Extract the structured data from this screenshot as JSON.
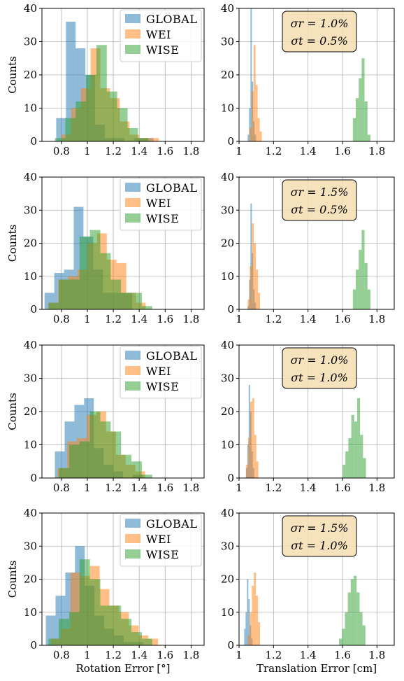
{
  "chart_data": {
    "type": "histogram-grid",
    "series": [
      {
        "name": "GLOBAL",
        "color": "#1f77b4"
      },
      {
        "name": "WEI",
        "color": "#ff7f0e"
      },
      {
        "name": "WISE",
        "color": "#2ca02c"
      }
    ],
    "rotation_axis": {
      "xlabel": "Rotation Error [°]",
      "xlim": [
        0.65,
        1.9
      ],
      "xticks": [
        "0.8",
        "1",
        "1.2",
        "1.4",
        "1.6",
        "1.8"
      ],
      "xtick_values": [
        0.8,
        1.0,
        1.2,
        1.4,
        1.6,
        1.8
      ]
    },
    "translation_axis": {
      "xlabel": "Translation Error [cm]",
      "xlim": [
        1.0,
        1.9
      ],
      "xticks": [
        "1",
        "1.2",
        "1.4",
        "1.6",
        "1.8"
      ],
      "xtick_values": [
        1.0,
        1.2,
        1.4,
        1.6,
        1.8
      ]
    },
    "ylabel": "Counts",
    "ylim": [
      0,
      40
    ],
    "yticks": [
      "0",
      "10",
      "20",
      "30",
      "40"
    ],
    "ytick_values": [
      0,
      10,
      20,
      30,
      40
    ],
    "rows": [
      {
        "sigma_r": "σr = 1.0%",
        "sigma_t": "σt = 0.5%",
        "rotation": {
          "GLOBAL": {
            "start": 0.76,
            "width": 0.075,
            "counts": [
              7,
              36,
              28,
              20,
              5,
              1,
              1,
              0,
              1,
              1,
              0
            ]
          },
          "WEI": {
            "start": 0.8,
            "width": 0.075,
            "counts": [
              2,
              10,
              16,
              28,
              16,
              13,
              6,
              2,
              1,
              1
            ]
          },
          "WISE": {
            "start": 0.75,
            "width": 0.08,
            "counts": [
              1,
              7,
              12,
              20,
              29,
              15,
              10,
              4,
              1
            ]
          }
        },
        "translation": {
          "GLOBAL": {
            "start": 1.05,
            "width": 0.008,
            "counts": [
              2,
              10,
              40,
              18,
              6,
              2
            ]
          },
          "WEI": {
            "start": 1.06,
            "width": 0.012,
            "counts": [
              4,
              15,
              29,
              17,
              7,
              3
            ]
          },
          "WISE": {
            "start": 1.66,
            "width": 0.017,
            "counts": [
              7,
              13,
              19,
              25,
              12,
              2
            ]
          }
        }
      },
      {
        "sigma_r": "σr = 1.5%",
        "sigma_t": "σt = 0.5%",
        "rotation": {
          "GLOBAL": {
            "start": 0.67,
            "width": 0.075,
            "counts": [
              5,
              11,
              12,
              31,
              22,
              12,
              5,
              5,
              5,
              0,
              0
            ]
          },
          "WEI": {
            "start": 0.7,
            "width": 0.075,
            "counts": [
              2,
              9,
              10,
              12,
              20,
              23,
              15,
              14,
              5,
              2
            ]
          },
          "WISE": {
            "start": 0.7,
            "width": 0.08,
            "counts": [
              2,
              9,
              9,
              22,
              24,
              17,
              9,
              5,
              5,
              1
            ]
          }
        },
        "translation": {
          "GLOBAL": {
            "start": 1.05,
            "width": 0.008,
            "counts": [
              1,
              9,
              32,
              17,
              6,
              2
            ]
          },
          "WEI": {
            "start": 1.05,
            "width": 0.012,
            "counts": [
              3,
              13,
              26,
              20,
              12,
              5
            ]
          },
          "WISE": {
            "start": 1.66,
            "width": 0.017,
            "counts": [
              6,
              12,
              18,
              24,
              14,
              6
            ]
          }
        }
      },
      {
        "sigma_r": "σr = 1.0%",
        "sigma_t": "σt = 1.0%",
        "rotation": {
          "GLOBAL": {
            "start": 0.75,
            "width": 0.075,
            "counts": [
              8,
              17,
              22,
              24,
              9,
              4,
              2,
              0,
              1
            ]
          },
          "WEI": {
            "start": 0.77,
            "width": 0.075,
            "counts": [
              3,
              11,
              12,
              19,
              20,
              14,
              7,
              4,
              2
            ]
          },
          "WISE": {
            "start": 0.78,
            "width": 0.08,
            "counts": [
              3,
              10,
              11,
              20,
              17,
              14,
              7,
              5,
              1
            ]
          }
        },
        "translation": {
          "GLOBAL": {
            "start": 1.04,
            "width": 0.008,
            "counts": [
              3,
              10,
              28,
              20,
              8,
              3
            ]
          },
          "WEI": {
            "start": 1.04,
            "width": 0.012,
            "counts": [
              4,
              12,
              23,
              24,
              13,
              5
            ]
          },
          "WISE": {
            "start": 1.6,
            "width": 0.017,
            "counts": [
              4,
              8,
              12,
              19,
              17,
              24,
              13,
              6
            ]
          }
        }
      },
      {
        "sigma_r": "σr = 1.5%",
        "sigma_t": "σt = 1.0%",
        "rotation": {
          "GLOBAL": {
            "start": 0.68,
            "width": 0.075,
            "counts": [
              9,
              15,
              22,
              30,
              18,
              9,
              5,
              3,
              1,
              1,
              0
            ]
          },
          "WEI": {
            "start": 0.72,
            "width": 0.075,
            "counts": [
              2,
              5,
              22,
              21,
              24,
              17,
              12,
              10,
              6,
              3,
              2
            ]
          },
          "WISE": {
            "start": 0.7,
            "width": 0.08,
            "counts": [
              2,
              8,
              10,
              26,
              20,
              12,
              12,
              8,
              4,
              2
            ]
          }
        },
        "translation": {
          "GLOBAL": {
            "start": 1.03,
            "width": 0.008,
            "counts": [
              5,
              10,
              20,
              14,
              6,
              2
            ]
          },
          "WEI": {
            "start": 1.05,
            "width": 0.012,
            "counts": [
              3,
              10,
              18,
              22,
              15,
              7
            ]
          },
          "WISE": {
            "start": 1.58,
            "width": 0.017,
            "counts": [
              2,
              5,
              10,
              16,
              20,
              21,
              16,
              10,
              6
            ]
          }
        }
      }
    ]
  }
}
